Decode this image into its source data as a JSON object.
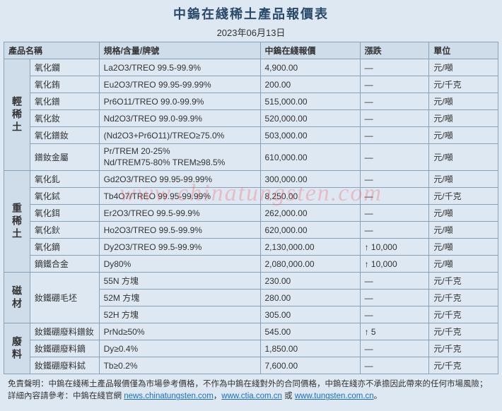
{
  "title": "中鎢在綫稀土產品報價表",
  "date": "2023年06月13日",
  "columns": [
    "產品名稱",
    "規格/含量/牌號",
    "中鎢在綫報價",
    "漲跌",
    "單位"
  ],
  "groups": [
    {
      "name": "輕稀土",
      "rows": [
        {
          "p": "氧化鑭",
          "s": "La2O3/TREO 99.5-99.9%",
          "q": "4,900.00",
          "c": "—",
          "u": "元/噸"
        },
        {
          "p": "氧化銪",
          "s": "Eu2O3/TREO 99.95-99.99%",
          "q": "200.00",
          "c": "—",
          "u": "元/千克"
        },
        {
          "p": "氧化鐠",
          "s": "Pr6O11/TREO 99.0-99.9%",
          "q": "515,000.00",
          "c": "—",
          "u": "元/噸"
        },
        {
          "p": "氧化釹",
          "s": "Nd2O3/TREO 99.0-99.9%",
          "q": "520,000.00",
          "c": "—",
          "u": "元/噸"
        },
        {
          "p": "氧化鐠釹",
          "s": "(Nd2O3+Pr6O11)/TREO≥75.0%",
          "q": "503,000.00",
          "c": "—",
          "u": "元/噸"
        },
        {
          "p": "鐠釹金屬",
          "s": "Pr/TREM 20-25%\nNd/TREM75-80% TREM≥98.5%",
          "q": "610,000.00",
          "c": "—",
          "u": "元/噸"
        }
      ]
    },
    {
      "name": "重稀土",
      "rows": [
        {
          "p": "氧化釓",
          "s": "Gd2O3/TREO 99.95-99.99%",
          "q": "300,000.00",
          "c": "—",
          "u": "元/噸"
        },
        {
          "p": "氧化鋱",
          "s": "Tb4O7/TREO 99.95-99.99%",
          "q": "8,250.00",
          "c": "—",
          "u": "元/千克"
        },
        {
          "p": "氧化鉺",
          "s": "Er2O3/TREO 99.5-99.9%",
          "q": "262,000.00",
          "c": "—",
          "u": "元/噸"
        },
        {
          "p": "氧化鈥",
          "s": "Ho2O3/TREO 99.5-99.9%",
          "q": "620,000.00",
          "c": "—",
          "u": "元/噸"
        },
        {
          "p": "氧化鏑",
          "s": "Dy2O3/TREO 99.5-99.9%",
          "q": "2,130,000.00",
          "c": "↑ 10,000",
          "u": "元/噸"
        },
        {
          "p": "鏑鐵合金",
          "s": "Dy80%",
          "q": "2,080,000.00",
          "c": "↑ 10,000",
          "u": "元/噸"
        }
      ]
    },
    {
      "name": "磁材",
      "rows": [
        {
          "p": "釹鐵硼毛坯",
          "s": "55N 方塊",
          "q": "230.00",
          "c": "—",
          "u": "元/千克",
          "rowspan": 3
        },
        {
          "p": "",
          "s": "52M 方塊",
          "q": "280.00",
          "c": "—",
          "u": "元/千克"
        },
        {
          "p": "",
          "s": "52H 方塊",
          "q": "305.00",
          "c": "—",
          "u": "元/千克"
        }
      ]
    },
    {
      "name": "廢料",
      "rows": [
        {
          "p": "釹鐵硼廢料鐠釹",
          "s": "PrNd≥50%",
          "q": "545.00",
          "c": "↑ 5",
          "u": "元/千克"
        },
        {
          "p": "釹鐵硼廢料鏑",
          "s": "Dy≥0.4%",
          "q": "1,850.00",
          "c": "—",
          "u": "元/千克"
        },
        {
          "p": "釹鐵硼廢料鋱",
          "s": "Tb≥0.2%",
          "q": "7,600.00",
          "c": "—",
          "u": "元/千克"
        }
      ]
    }
  ],
  "watermark": "www.chinatungsten.com",
  "footer_prefix": "免責聲明：中鎢在綫稀土產品報價僅為市場參考價格，不作為中鎢在綫對外的合同價格，中鎢在綫亦不承擔因此帶來的任何市場風險；詳細內容請參考：中鎢在綫官網 ",
  "footer_links": [
    "news.chinatungsten.com",
    "www.ctia.com.cn",
    "www.tungsten.com.cn"
  ],
  "footer_seps": [
    "，",
    "，",
    " 或 ",
    "。"
  ]
}
